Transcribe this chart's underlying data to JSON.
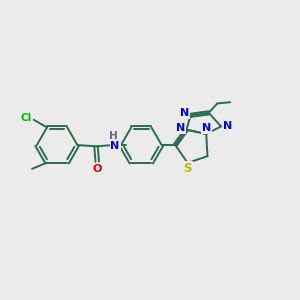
{
  "background_color": "#ebebeb",
  "bond_color": "#2d6b50",
  "N_color": "#0000ee",
  "S_color": "#bbbb00",
  "O_color": "#dd0000",
  "Cl_color": "#00bb00",
  "H_color": "#666688",
  "figsize": [
    3.0,
    3.0
  ],
  "dpi": 100,
  "xlim": [
    0,
    12
  ],
  "ylim": [
    0,
    10
  ]
}
